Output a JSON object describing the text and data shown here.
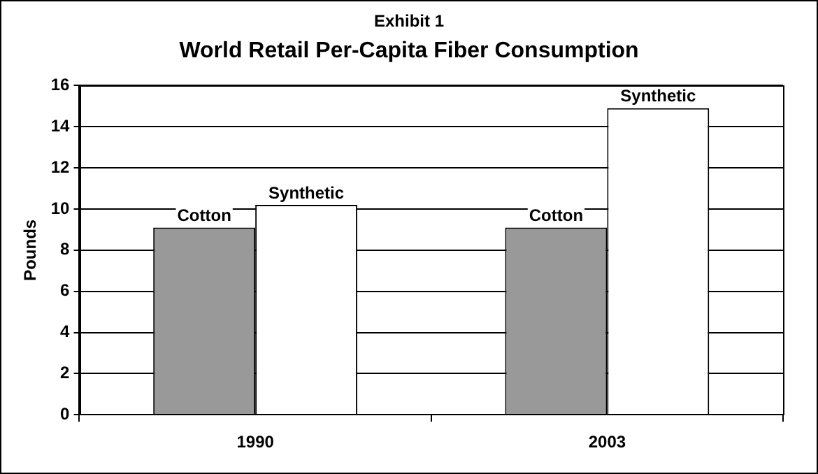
{
  "chart_data": {
    "type": "bar",
    "subtitle": "Exhibit 1",
    "title": "World Retail Per-Capita Fiber Consumption",
    "ylabel": "Pounds",
    "categories": [
      "1990",
      "2003"
    ],
    "series": [
      {
        "name": "Cotton",
        "color": "#999999",
        "values": [
          9.1,
          9.1
        ]
      },
      {
        "name": "Synthetic",
        "color": "#ffffff",
        "values": [
          10.2,
          14.9
        ]
      }
    ],
    "ylim": [
      0,
      16
    ],
    "yticks": [
      0,
      2,
      4,
      6,
      8,
      10,
      12,
      14,
      16
    ],
    "grid": "y",
    "legend": false
  }
}
